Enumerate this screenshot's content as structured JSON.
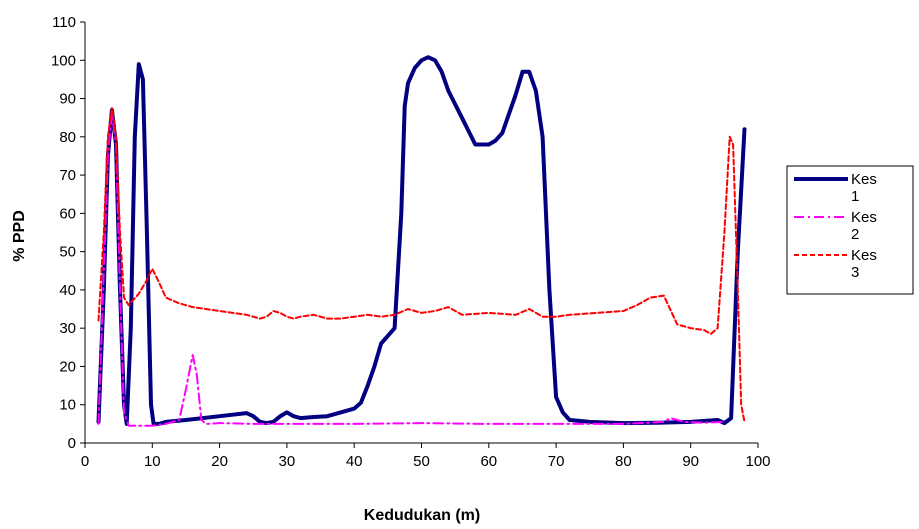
{
  "chart_data": {
    "type": "line",
    "title": "",
    "xlabel": "Kedudukan (m)",
    "ylabel": "% PPD",
    "xlim": [
      0,
      100
    ],
    "ylim": [
      0,
      110
    ],
    "xticks": [
      0,
      10,
      20,
      30,
      40,
      50,
      60,
      70,
      80,
      90,
      100
    ],
    "yticks": [
      0,
      10,
      20,
      30,
      40,
      50,
      60,
      70,
      80,
      90,
      100,
      110
    ],
    "grid": false,
    "legend_position": "right",
    "series": [
      {
        "name": "Kes 1",
        "color": "#000080",
        "style": "solid",
        "points": [
          [
            2,
            5.5
          ],
          [
            2.8,
            40
          ],
          [
            3.4,
            75
          ],
          [
            4,
            87
          ],
          [
            4.6,
            78
          ],
          [
            5.2,
            40
          ],
          [
            5.8,
            10
          ],
          [
            6.2,
            5
          ],
          [
            6.8,
            30
          ],
          [
            7.4,
            80
          ],
          [
            8,
            99
          ],
          [
            8.6,
            95
          ],
          [
            9.2,
            55
          ],
          [
            9.8,
            10
          ],
          [
            10.2,
            5
          ],
          [
            11,
            5
          ],
          [
            12,
            5.5
          ],
          [
            15,
            6
          ],
          [
            20,
            7
          ],
          [
            24,
            7.8
          ],
          [
            25,
            7
          ],
          [
            26,
            5.5
          ],
          [
            27,
            5.2
          ],
          [
            28,
            5.5
          ],
          [
            29,
            7
          ],
          [
            30,
            8
          ],
          [
            31,
            7
          ],
          [
            32,
            6.5
          ],
          [
            34,
            6.8
          ],
          [
            36,
            7
          ],
          [
            38,
            8
          ],
          [
            40,
            9
          ],
          [
            41,
            10.5
          ],
          [
            42,
            15
          ],
          [
            43,
            20
          ],
          [
            44,
            26
          ],
          [
            45,
            28
          ],
          [
            46,
            30
          ],
          [
            47,
            60
          ],
          [
            47.5,
            88
          ],
          [
            48,
            94
          ],
          [
            49,
            98
          ],
          [
            50,
            100
          ],
          [
            51,
            100.8
          ],
          [
            52,
            100
          ],
          [
            53,
            97
          ],
          [
            54,
            92
          ],
          [
            56,
            85
          ],
          [
            58,
            78
          ],
          [
            60,
            78
          ],
          [
            61,
            79
          ],
          [
            62,
            81
          ],
          [
            64,
            91
          ],
          [
            65,
            97
          ],
          [
            66,
            97
          ],
          [
            67,
            92
          ],
          [
            68,
            80
          ],
          [
            69,
            40
          ],
          [
            70,
            12
          ],
          [
            71,
            8
          ],
          [
            72,
            6
          ],
          [
            75,
            5.5
          ],
          [
            80,
            5.2
          ],
          [
            85,
            5.3
          ],
          [
            90,
            5.5
          ],
          [
            94,
            6
          ],
          [
            95,
            5.2
          ],
          [
            96,
            6.5
          ],
          [
            97,
            50
          ],
          [
            98,
            82
          ]
        ]
      },
      {
        "name": "Kes 2",
        "color": "#FF00FF",
        "style": "dashdot",
        "points": [
          [
            2,
            5
          ],
          [
            2.8,
            45
          ],
          [
            3.4,
            75
          ],
          [
            4,
            86
          ],
          [
            4.6,
            78
          ],
          [
            5.2,
            40
          ],
          [
            5.8,
            8
          ],
          [
            6.5,
            4.5
          ],
          [
            8,
            4.5
          ],
          [
            10,
            4.5
          ],
          [
            12,
            5
          ],
          [
            14,
            6
          ],
          [
            15,
            14
          ],
          [
            16,
            23
          ],
          [
            16.6,
            18
          ],
          [
            17.3,
            6
          ],
          [
            18,
            5
          ],
          [
            20,
            5.2
          ],
          [
            25,
            5
          ],
          [
            30,
            5
          ],
          [
            40,
            5
          ],
          [
            50,
            5.2
          ],
          [
            60,
            5
          ],
          [
            70,
            5
          ],
          [
            80,
            5
          ],
          [
            86,
            5.5
          ],
          [
            87,
            6.5
          ],
          [
            89,
            5.5
          ],
          [
            92,
            5.3
          ],
          [
            95,
            5.5
          ]
        ]
      },
      {
        "name": "Kes 3",
        "color": "#FF0000",
        "style": "dashed",
        "points": [
          [
            2,
            32
          ],
          [
            2.8,
            55
          ],
          [
            3.4,
            80
          ],
          [
            4,
            87.5
          ],
          [
            4.6,
            80
          ],
          [
            5.2,
            55
          ],
          [
            5.8,
            38
          ],
          [
            6.5,
            36
          ],
          [
            8,
            39
          ],
          [
            9,
            42
          ],
          [
            10,
            45.5
          ],
          [
            11,
            42
          ],
          [
            12,
            38
          ],
          [
            14,
            36.5
          ],
          [
            16,
            35.5
          ],
          [
            20,
            34.5
          ],
          [
            24,
            33.5
          ],
          [
            26,
            32.5
          ],
          [
            27,
            33
          ],
          [
            28,
            34.5
          ],
          [
            29,
            34
          ],
          [
            30,
            33
          ],
          [
            31,
            32.5
          ],
          [
            32,
            33
          ],
          [
            34,
            33.5
          ],
          [
            36,
            32.5
          ],
          [
            38,
            32.5
          ],
          [
            40,
            33
          ],
          [
            42,
            33.5
          ],
          [
            44,
            33
          ],
          [
            46,
            33.5
          ],
          [
            48,
            35
          ],
          [
            50,
            34
          ],
          [
            52,
            34.5
          ],
          [
            54,
            35.5
          ],
          [
            56,
            33.5
          ],
          [
            60,
            34
          ],
          [
            64,
            33.5
          ],
          [
            66,
            35
          ],
          [
            68,
            33
          ],
          [
            70,
            33
          ],
          [
            72,
            33.5
          ],
          [
            76,
            34
          ],
          [
            80,
            34.5
          ],
          [
            82,
            36
          ],
          [
            84,
            38
          ],
          [
            86,
            38.5
          ],
          [
            88,
            31
          ],
          [
            90,
            30
          ],
          [
            92,
            29.5
          ],
          [
            93,
            28.5
          ],
          [
            94,
            30
          ],
          [
            95,
            55
          ],
          [
            95.8,
            80
          ],
          [
            96.3,
            78
          ],
          [
            97,
            40
          ],
          [
            97.5,
            10
          ],
          [
            98,
            5.5
          ]
        ]
      }
    ]
  }
}
